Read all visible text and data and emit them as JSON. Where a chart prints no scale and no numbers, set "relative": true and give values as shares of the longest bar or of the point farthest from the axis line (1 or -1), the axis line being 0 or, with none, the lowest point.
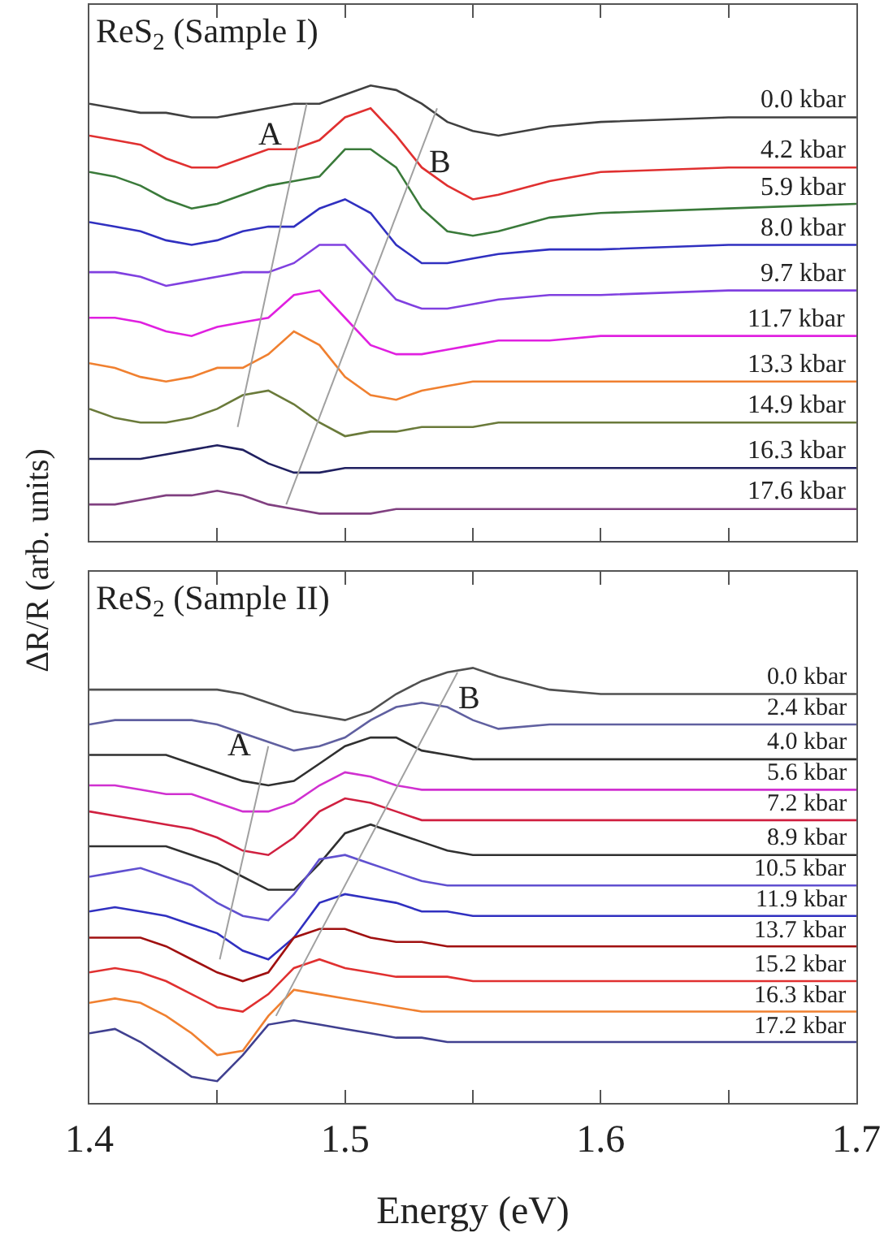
{
  "chart_data": [
    {
      "type": "line",
      "title": "ReS$_{2}$ (Sample I)",
      "ylabel": "ΔR/R (arb. units)",
      "relative": true,
      "tick_labels": false,
      "xlim": [
        1.4,
        1.7
      ],
      "xticks": [
        {
          "value": 1.4,
          "label": null
        },
        {
          "value": 1.45,
          "label": null
        },
        {
          "value": 1.5,
          "label": null
        },
        {
          "value": 1.55,
          "label": null
        },
        {
          "value": 1.6,
          "label": null
        },
        {
          "value": 1.65,
          "label": null
        },
        {
          "value": 1.7,
          "label": null
        }
      ],
      "x": [
        1.4,
        1.41,
        1.42,
        1.43,
        1.44,
        1.45,
        1.46,
        1.47,
        1.48,
        1.49,
        1.5,
        1.51,
        1.52,
        1.53,
        1.54,
        1.55,
        1.56,
        1.58,
        1.6,
        1.65,
        1.7
      ],
      "series": [
        {
          "name": "0.0 kbar",
          "color": "#404040",
          "values": [
            0.96,
            0.95,
            0.94,
            0.94,
            0.93,
            0.93,
            0.94,
            0.95,
            0.96,
            0.96,
            0.98,
            1.0,
            0.99,
            0.96,
            0.92,
            0.9,
            0.89,
            0.91,
            0.92,
            0.93,
            0.93
          ]
        },
        {
          "name": "4.2 kbar",
          "color": "#e03030",
          "values": [
            0.89,
            0.88,
            0.87,
            0.84,
            0.82,
            0.82,
            0.84,
            0.86,
            0.86,
            0.88,
            0.93,
            0.95,
            0.89,
            0.82,
            0.78,
            0.75,
            0.76,
            0.79,
            0.81,
            0.82,
            0.82
          ]
        },
        {
          "name": "5.9 kbar",
          "color": "#3a7a3a",
          "values": [
            0.81,
            0.8,
            0.78,
            0.75,
            0.73,
            0.74,
            0.76,
            0.78,
            0.79,
            0.8,
            0.86,
            0.86,
            0.82,
            0.73,
            0.68,
            0.67,
            0.68,
            0.71,
            0.72,
            0.73,
            0.74
          ]
        },
        {
          "name": "8.0 kbar",
          "color": "#3030c0",
          "values": [
            0.7,
            0.69,
            0.68,
            0.66,
            0.65,
            0.66,
            0.68,
            0.69,
            0.69,
            0.73,
            0.75,
            0.72,
            0.65,
            0.61,
            0.61,
            0.62,
            0.63,
            0.64,
            0.64,
            0.65,
            0.65
          ]
        },
        {
          "name": "9.7 kbar",
          "color": "#8040e0",
          "values": [
            0.59,
            0.59,
            0.58,
            0.56,
            0.57,
            0.58,
            0.59,
            0.59,
            0.61,
            0.65,
            0.65,
            0.59,
            0.53,
            0.51,
            0.51,
            0.52,
            0.53,
            0.54,
            0.54,
            0.55,
            0.55
          ]
        },
        {
          "name": "11.7 kbar",
          "color": "#e020e0",
          "values": [
            0.49,
            0.49,
            0.48,
            0.46,
            0.45,
            0.47,
            0.48,
            0.49,
            0.54,
            0.55,
            0.49,
            0.43,
            0.41,
            0.41,
            0.42,
            0.43,
            0.44,
            0.44,
            0.45,
            0.45,
            0.45
          ]
        },
        {
          "name": "13.3 kbar",
          "color": "#f08030",
          "values": [
            0.39,
            0.38,
            0.36,
            0.35,
            0.36,
            0.38,
            0.38,
            0.41,
            0.46,
            0.43,
            0.36,
            0.32,
            0.31,
            0.33,
            0.34,
            0.35,
            0.35,
            0.35,
            0.35,
            0.35,
            0.35
          ]
        },
        {
          "name": "14.9 kbar",
          "color": "#6a7a3a",
          "values": [
            0.29,
            0.27,
            0.26,
            0.26,
            0.27,
            0.29,
            0.32,
            0.33,
            0.3,
            0.26,
            0.23,
            0.24,
            0.24,
            0.25,
            0.25,
            0.25,
            0.26,
            0.26,
            0.26,
            0.26,
            0.26
          ]
        },
        {
          "name": "16.3 kbar",
          "color": "#202060",
          "values": [
            0.18,
            0.18,
            0.18,
            0.19,
            0.2,
            0.21,
            0.2,
            0.17,
            0.15,
            0.15,
            0.16,
            0.16,
            0.16,
            0.16,
            0.16,
            0.16,
            0.16,
            0.16,
            0.16,
            0.16,
            0.16
          ]
        },
        {
          "name": "17.6 kbar",
          "color": "#804080",
          "values": [
            0.08,
            0.08,
            0.09,
            0.1,
            0.1,
            0.11,
            0.1,
            0.08,
            0.07,
            0.06,
            0.06,
            0.06,
            0.07,
            0.07,
            0.07,
            0.07,
            0.07,
            0.07,
            0.07,
            0.07,
            0.07
          ]
        },
        {
          "color": "#a0a0a0",
          "x": [
            1.458,
            1.485
          ],
          "values": [
            0.25,
            0.96
          ]
        },
        {
          "color": "#a0a0a0",
          "x": [
            1.477,
            1.536
          ],
          "values": [
            0.08,
            0.95
          ]
        }
      ],
      "annotations": [
        {
          "text": "A",
          "x": 1.482,
          "y": 0.89
        },
        {
          "text": "B",
          "x": 1.528,
          "y": 0.83
        }
      ]
    },
    {
      "type": "line",
      "title": "ReS$_{2}$ (Sample II)",
      "xlabel": "Energy (eV)",
      "relative": true,
      "tick_labels": "x",
      "xlim": [
        1.4,
        1.7
      ],
      "xticks": [
        {
          "value": 1.4,
          "label": "1.4"
        },
        {
          "value": 1.45,
          "label": null
        },
        {
          "value": 1.5,
          "label": "1.5"
        },
        {
          "value": 1.55,
          "label": null
        },
        {
          "value": 1.6,
          "label": "1.6"
        },
        {
          "value": 1.65,
          "label": null
        },
        {
          "value": 1.7,
          "label": "1.7"
        }
      ],
      "x": [
        1.4,
        1.41,
        1.42,
        1.43,
        1.44,
        1.45,
        1.46,
        1.47,
        1.48,
        1.49,
        1.5,
        1.51,
        1.52,
        1.53,
        1.54,
        1.55,
        1.56,
        1.58,
        1.6,
        1.65,
        1.7
      ],
      "series": [
        {
          "name": "0.0 kbar",
          "color": "#505050",
          "values": [
            0.95,
            0.95,
            0.95,
            0.95,
            0.95,
            0.95,
            0.94,
            0.92,
            0.9,
            0.89,
            0.88,
            0.9,
            0.94,
            0.97,
            0.99,
            1.0,
            0.98,
            0.95,
            0.94,
            0.94,
            0.94
          ]
        },
        {
          "name": "2.4 kbar",
          "color": "#6060a0",
          "values": [
            0.87,
            0.88,
            0.88,
            0.88,
            0.88,
            0.87,
            0.85,
            0.83,
            0.81,
            0.82,
            0.84,
            0.88,
            0.91,
            0.92,
            0.91,
            0.88,
            0.86,
            0.87,
            0.87,
            0.87,
            0.87
          ]
        },
        {
          "name": "4.0 kbar",
          "color": "#303030",
          "values": [
            0.8,
            0.8,
            0.8,
            0.8,
            0.78,
            0.76,
            0.74,
            0.73,
            0.74,
            0.78,
            0.82,
            0.84,
            0.84,
            0.81,
            0.8,
            0.79,
            0.79,
            0.79,
            0.79,
            0.79,
            0.79
          ]
        },
        {
          "name": "5.6 kbar",
          "color": "#d030d0",
          "values": [
            0.73,
            0.73,
            0.72,
            0.71,
            0.71,
            0.69,
            0.67,
            0.67,
            0.69,
            0.73,
            0.76,
            0.75,
            0.73,
            0.72,
            0.72,
            0.72,
            0.72,
            0.72,
            0.72,
            0.72,
            0.72
          ]
        },
        {
          "name": "7.2 kbar",
          "color": "#d02040",
          "values": [
            0.67,
            0.66,
            0.65,
            0.64,
            0.63,
            0.61,
            0.58,
            0.57,
            0.61,
            0.67,
            0.7,
            0.69,
            0.67,
            0.65,
            0.65,
            0.65,
            0.65,
            0.65,
            0.65,
            0.65,
            0.65
          ]
        },
        {
          "name": "8.9 kbar",
          "color": "#303030",
          "values": [
            0.59,
            0.59,
            0.59,
            0.59,
            0.57,
            0.55,
            0.52,
            0.49,
            0.49,
            0.55,
            0.62,
            0.64,
            0.62,
            0.6,
            0.58,
            0.57,
            0.57,
            0.57,
            0.57,
            0.57,
            0.57
          ]
        },
        {
          "name": "10.5 kbar",
          "color": "#6050d0",
          "values": [
            0.52,
            0.53,
            0.54,
            0.52,
            0.5,
            0.46,
            0.43,
            0.42,
            0.48,
            0.56,
            0.57,
            0.55,
            0.53,
            0.51,
            0.5,
            0.5,
            0.5,
            0.5,
            0.5,
            0.5,
            0.5
          ]
        },
        {
          "name": "11.9 kbar",
          "color": "#3030c0",
          "values": [
            0.44,
            0.45,
            0.44,
            0.43,
            0.41,
            0.39,
            0.35,
            0.33,
            0.38,
            0.46,
            0.48,
            0.47,
            0.46,
            0.44,
            0.44,
            0.43,
            0.43,
            0.43,
            0.43,
            0.43,
            0.43
          ]
        },
        {
          "name": "13.7 kbar",
          "color": "#a01010",
          "values": [
            0.38,
            0.38,
            0.38,
            0.36,
            0.33,
            0.3,
            0.28,
            0.3,
            0.38,
            0.4,
            0.4,
            0.38,
            0.37,
            0.37,
            0.36,
            0.36,
            0.36,
            0.36,
            0.36,
            0.36,
            0.36
          ]
        },
        {
          "name": "15.2 kbar",
          "color": "#e03030",
          "values": [
            0.3,
            0.31,
            0.3,
            0.28,
            0.25,
            0.22,
            0.21,
            0.25,
            0.31,
            0.33,
            0.31,
            0.3,
            0.29,
            0.29,
            0.29,
            0.28,
            0.28,
            0.28,
            0.28,
            0.28,
            0.28
          ]
        },
        {
          "name": "16.3 kbar",
          "color": "#f08030",
          "values": [
            0.23,
            0.24,
            0.23,
            0.2,
            0.16,
            0.11,
            0.12,
            0.2,
            0.26,
            0.25,
            0.24,
            0.23,
            0.22,
            0.21,
            0.21,
            0.21,
            0.21,
            0.21,
            0.21,
            0.21,
            0.21
          ]
        },
        {
          "name": "17.2 kbar",
          "color": "#404090",
          "values": [
            0.16,
            0.17,
            0.14,
            0.1,
            0.06,
            0.05,
            0.11,
            0.18,
            0.19,
            0.18,
            0.17,
            0.16,
            0.15,
            0.15,
            0.14,
            0.14,
            0.14,
            0.14,
            0.14,
            0.14,
            0.14
          ]
        },
        {
          "color": "#a0a0a0",
          "x": [
            1.451,
            1.47
          ],
          "values": [
            0.33,
            0.82
          ]
        },
        {
          "color": "#a0a0a0",
          "x": [
            1.473,
            1.544
          ],
          "values": [
            0.2,
            0.99
          ]
        }
      ],
      "annotations": [
        {
          "text": "A",
          "x": 1.47,
          "y": 0.82
        },
        {
          "text": "B",
          "x": 1.539,
          "y": 0.93
        }
      ]
    }
  ]
}
